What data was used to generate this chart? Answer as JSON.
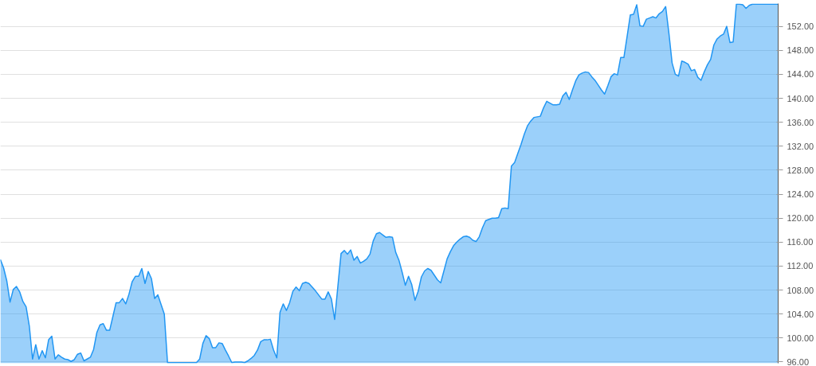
{
  "chart_data": {
    "type": "area",
    "categories": [
      null,
      null,
      null,
      null,
      null,
      null,
      null,
      null,
      null,
      null,
      null,
      null,
      null,
      null,
      null,
      null,
      null,
      null,
      null,
      null,
      null,
      null,
      null,
      null,
      null,
      null,
      null,
      null,
      null,
      null,
      null,
      null,
      null,
      null,
      null,
      null,
      null,
      null,
      null,
      null,
      null,
      null,
      null,
      null,
      null,
      null,
      null,
      null,
      null,
      null,
      null,
      null,
      null,
      null,
      null,
      null,
      null,
      null,
      null,
      null,
      null,
      null,
      null,
      null,
      null,
      null,
      null,
      null,
      null,
      null,
      null,
      null,
      null,
      null,
      null,
      null,
      null,
      null,
      null,
      null,
      null,
      null,
      null,
      null,
      null,
      null,
      null,
      null,
      null,
      null,
      null,
      null,
      null,
      null,
      null,
      null,
      null,
      null,
      null,
      null,
      null,
      null,
      null,
      null,
      null,
      null,
      null,
      null,
      null,
      null,
      null,
      null,
      null,
      null,
      null,
      null,
      null,
      null,
      null,
      null,
      null,
      null,
      null,
      null,
      null,
      null,
      null,
      null,
      null,
      null,
      null,
      null,
      null,
      null,
      null,
      null,
      null,
      null,
      null,
      null,
      null,
      null,
      null,
      null,
      null,
      null,
      null,
      null,
      null,
      null,
      null,
      null,
      null,
      null,
      null,
      null,
      null,
      null,
      null,
      null,
      null,
      null,
      null,
      null,
      null,
      null,
      null,
      null,
      null,
      null,
      null,
      null,
      null,
      null,
      null,
      null,
      null,
      null,
      null,
      null,
      null,
      null,
      null,
      null,
      null,
      null,
      null,
      null,
      null,
      null,
      null,
      null,
      null,
      null,
      null,
      null,
      null,
      null,
      null,
      null,
      null,
      null,
      null,
      null,
      null,
      null,
      null,
      null,
      null,
      null,
      null,
      null,
      null,
      null,
      null,
      null,
      null,
      null,
      null,
      null,
      null,
      null,
      null,
      null,
      null,
      null,
      null,
      null,
      null,
      null,
      null,
      null,
      null,
      null,
      null,
      null,
      null,
      null,
      null,
      null,
      null,
      null,
      null
    ],
    "series": [
      {
        "color": "#2196f3",
        "values": [
          113.1,
          111.7,
          109.5,
          106.0,
          108.1,
          108.6,
          107.7,
          106.1,
          105.2,
          102.0,
          96.5,
          98.9,
          96.5,
          97.9,
          96.7,
          99.7,
          100.3,
          96.5,
          97.2,
          96.8,
          96.5,
          96.4,
          96.1,
          96.4,
          97.3,
          97.5,
          96.2,
          96.5,
          96.8,
          98.1,
          100.9,
          102.2,
          102.4,
          101.3,
          101.3,
          103.6,
          105.9,
          105.9,
          106.6,
          105.7,
          107.3,
          109.4,
          110.3,
          110.3,
          111.6,
          109.1,
          111.1,
          109.9,
          106.6,
          107.2,
          105.6,
          104.0,
          95.9,
          95.9,
          95.9,
          95.9,
          95.9,
          95.9,
          95.9,
          95.9,
          95.9,
          95.9,
          96.5,
          99.1,
          100.4,
          99.9,
          98.4,
          98.4,
          99.2,
          99.1,
          98.0,
          97.0,
          95.9,
          96.0,
          96.0,
          96.0,
          95.9,
          96.2,
          96.6,
          97.1,
          98.0,
          99.4,
          99.7,
          99.7,
          99.8,
          98.0,
          96.7,
          104.3,
          105.7,
          104.6,
          105.9,
          107.8,
          108.5,
          107.9,
          109.1,
          109.3,
          109.1,
          108.5,
          107.9,
          107.2,
          106.5,
          106.5,
          107.7,
          106.5,
          103.1,
          108.6,
          114.1,
          114.6,
          114.0,
          114.7,
          113.0,
          113.6,
          112.5,
          112.8,
          113.2,
          114.0,
          116.2,
          117.4,
          117.6,
          117.2,
          116.8,
          116.9,
          116.8,
          114.3,
          113.0,
          111.0,
          108.8,
          110.3,
          108.9,
          106.3,
          107.8,
          110.2,
          111.2,
          111.6,
          111.3,
          110.5,
          109.7,
          109.2,
          111.2,
          113.2,
          114.4,
          115.4,
          116.0,
          116.5,
          116.9,
          117.0,
          116.8,
          116.3,
          116.1,
          116.9,
          118.4,
          119.6,
          119.8,
          120.0,
          120.0,
          120.1,
          121.6,
          121.7,
          121.6,
          128.7,
          129.3,
          130.8,
          132.3,
          134.0,
          135.4,
          136.2,
          136.8,
          136.9,
          137.0,
          138.4,
          139.5,
          139.2,
          138.9,
          138.9,
          139.0,
          140.4,
          141.0,
          139.8,
          141.4,
          142.9,
          143.9,
          144.2,
          144.4,
          144.3,
          143.6,
          143.0,
          142.2,
          141.4,
          140.7,
          142.1,
          143.6,
          144.1,
          143.9,
          146.8,
          146.8,
          150.3,
          153.9,
          154.0,
          155.6,
          152.1,
          152.0,
          153.2,
          153.4,
          153.6,
          153.4,
          154.1,
          154.5,
          155.3,
          150.9,
          145.9,
          144.0,
          143.7,
          146.2,
          146.0,
          145.7,
          144.6,
          144.8,
          143.5,
          143.0,
          144.4,
          145.6,
          146.5,
          148.9,
          149.9,
          150.4,
          150.7,
          152.0,
          149.3,
          149.4,
          155.7,
          155.7,
          155.6,
          155.0,
          155.5,
          155.7,
          155.7,
          155.7,
          155.7,
          155.7,
          155.7,
          155.7,
          155.7,
          155.7
        ]
      }
    ],
    "ylim": [
      95.8,
      155.8
    ],
    "yticks": [
      {
        "value": 96,
        "label": "96.00"
      },
      {
        "value": 100,
        "label": "100.00"
      },
      {
        "value": 104,
        "label": "104.00"
      },
      {
        "value": 108,
        "label": "108.00"
      },
      {
        "value": 112,
        "label": "112.00"
      },
      {
        "value": 116,
        "label": "116.00"
      },
      {
        "value": 120,
        "label": "120.00"
      },
      {
        "value": 124,
        "label": "124.00"
      },
      {
        "value": 128,
        "label": "128.00"
      },
      {
        "value": 132,
        "label": "132.00"
      },
      {
        "value": 136,
        "label": "136.00"
      },
      {
        "value": 140,
        "label": "140.00"
      },
      {
        "value": 144,
        "label": "144.00"
      },
      {
        "value": 148,
        "label": "148.00"
      },
      {
        "value": 152,
        "label": "152.00"
      }
    ],
    "tick_labels": "y",
    "grid": "y"
  }
}
